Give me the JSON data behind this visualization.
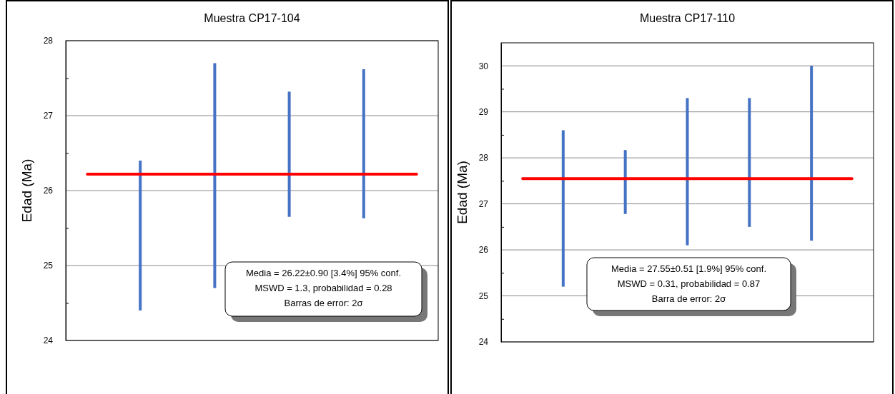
{
  "chart_data": [
    {
      "type": "bar",
      "title": "Muestra  CP17-104",
      "ylabel": "Edad (Ma)",
      "categories": [
        null,
        null,
        null,
        null
      ],
      "series": [
        {
          "color": "#4472c4",
          "base": [
            24.4,
            24.7,
            25.65,
            25.63
          ],
          "values": [
            2.0,
            3.0,
            1.67,
            1.99
          ]
        }
      ],
      "ylim": [
        24,
        28
      ],
      "yticks": [
        24,
        {
          "value": 24.5,
          "label": null
        },
        25,
        {
          "value": 25.5,
          "label": null
        },
        26,
        {
          "value": 26.5,
          "label": null
        },
        27,
        {
          "value": 27.5,
          "label": null
        },
        28
      ],
      "grid": "y",
      "ref_lines": [
        {
          "axis": "y",
          "value": 26.22,
          "color": "#ff0000"
        }
      ],
      "annotations": [
        "Media = 26.22±0.90  [3.4%]  95% conf.",
        "MSWD = 1.3, probabilidad = 0.28",
        "Barras de error: 2σ"
      ]
    },
    {
      "type": "bar",
      "title": "Muestra CP17-110",
      "ylabel": "Edad (Ma)",
      "categories": [
        null,
        null,
        null,
        null,
        null
      ],
      "series": [
        {
          "color": "#4472c4",
          "base": [
            25.2,
            26.78,
            26.1,
            26.5,
            26.2
          ],
          "values": [
            3.4,
            1.39,
            3.2,
            2.8,
            3.8
          ]
        }
      ],
      "ylim": [
        24,
        30.5
      ],
      "yticks": [
        24,
        {
          "value": 24.5,
          "label": null
        },
        25,
        {
          "value": 25.5,
          "label": null
        },
        26,
        {
          "value": 26.5,
          "label": null
        },
        27,
        {
          "value": 27.5,
          "label": null
        },
        28,
        {
          "value": 28.5,
          "label": null
        },
        29,
        {
          "value": 29.5,
          "label": null
        },
        30
      ],
      "grid": "y",
      "ref_lines": [
        {
          "axis": "y",
          "value": 27.55,
          "color": "#ff0000"
        }
      ],
      "annotations": [
        "Media = 27.55±0.51  [1.9%]  95% conf.",
        "MSWD = 0.31, probabilidad = 0.87",
        "Barra de error: 2σ"
      ]
    }
  ]
}
